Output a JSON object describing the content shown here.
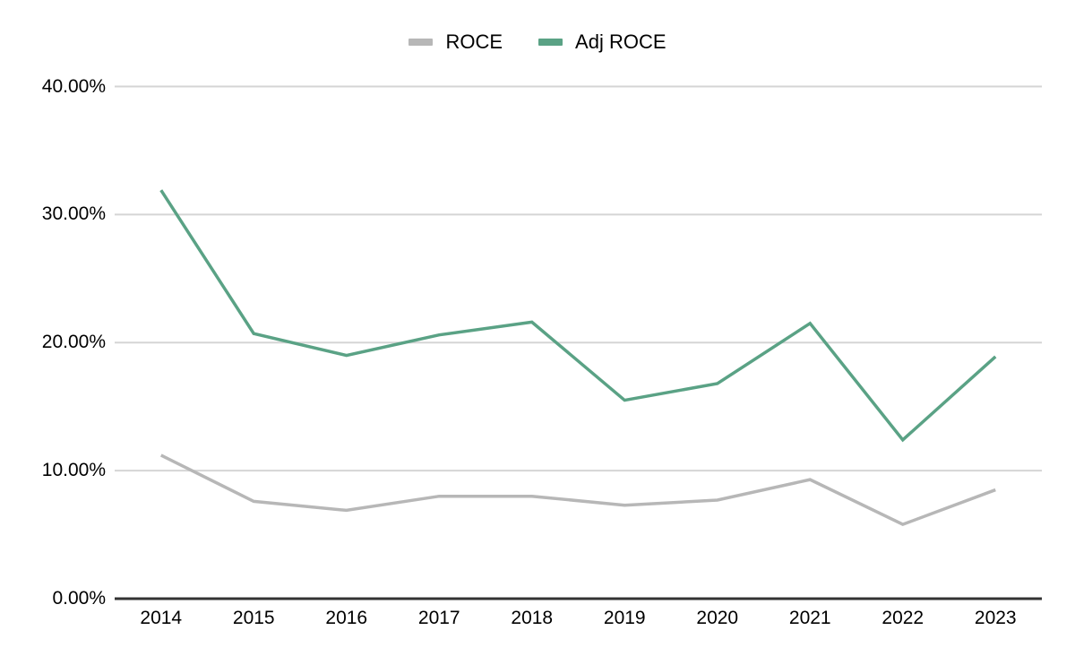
{
  "legend": {
    "items": [
      {
        "label": "ROCE",
        "color": "#b7b7b7"
      },
      {
        "label": "Adj ROCE",
        "color": "#5aa285"
      }
    ]
  },
  "chart_data": {
    "type": "line",
    "title": "",
    "xlabel": "",
    "ylabel": "",
    "categories": [
      "2014",
      "2015",
      "2016",
      "2017",
      "2018",
      "2019",
      "2020",
      "2021",
      "2022",
      "2023"
    ],
    "series": [
      {
        "name": "ROCE",
        "color": "#b7b7b7",
        "values": [
          11.2,
          7.6,
          6.9,
          8.0,
          8.0,
          7.3,
          7.7,
          9.3,
          5.8,
          8.5
        ]
      },
      {
        "name": "Adj ROCE",
        "color": "#5aa285",
        "values": [
          31.9,
          20.7,
          19.0,
          20.6,
          21.6,
          15.5,
          16.8,
          21.5,
          12.4,
          18.9
        ]
      }
    ],
    "y_ticks": [
      {
        "value": 0,
        "label": "0.00%"
      },
      {
        "value": 10,
        "label": "10.00%"
      },
      {
        "value": 20,
        "label": "20.00%"
      },
      {
        "value": 30,
        "label": "30.00%"
      },
      {
        "value": 40,
        "label": "40.00%"
      }
    ],
    "ylim": [
      0,
      40
    ],
    "grid": true,
    "legend_position": "top"
  },
  "colors": {
    "gridline": "#d5d5d5",
    "axis_line": "#333333",
    "text": "#000000",
    "background": "#ffffff"
  }
}
